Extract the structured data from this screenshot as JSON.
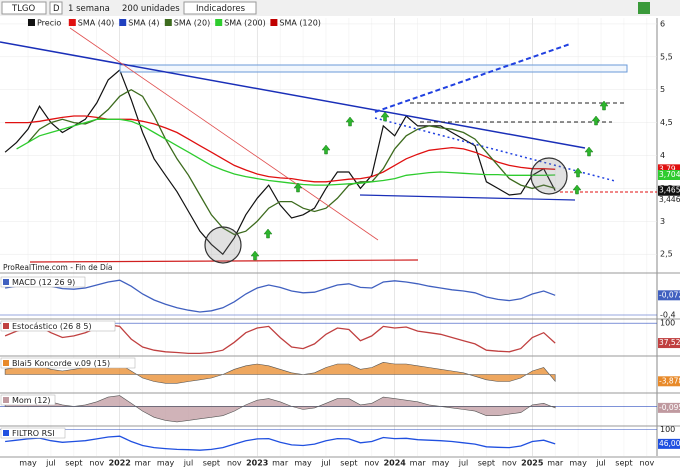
{
  "toolbar": {
    "symbol": "TLGO",
    "mode": "D",
    "period": "1 semana",
    "units": "200 unidades",
    "indicators": "Indicadores"
  },
  "chart_data": [
    {
      "type": "line",
      "source": "ProRealTime.com - Fin de Día",
      "categories": [
        null,
        null,
        "may",
        null,
        "jul",
        null,
        "sept",
        null,
        "nov",
        null,
        "2022",
        null,
        "mar",
        null,
        "may",
        null,
        "jul",
        null,
        "sept",
        null,
        "nov",
        null,
        "2023",
        null,
        "mar",
        null,
        "may",
        null,
        "jul",
        null,
        "sept",
        null,
        "nov",
        null,
        "2024",
        null,
        "mar",
        null,
        "may",
        null,
        "jul",
        null,
        "sept",
        null,
        "nov",
        null,
        "2025",
        null,
        "mar",
        null,
        "may",
        null,
        "jul",
        null,
        "sept",
        null,
        "nov"
      ],
      "ylim": [
        2.23,
        6.09
      ],
      "yticks": [
        {
          "value": 2.5,
          "label": "2,5"
        },
        3,
        {
          "value": 3.5,
          "label": "3,5"
        },
        4,
        {
          "value": 4.5,
          "label": "4,5"
        },
        5,
        {
          "value": 5.5,
          "label": "5,5"
        },
        6
      ],
      "series": [
        {
          "name": "Precio",
          "color": "#111111",
          "values": [
            4.05,
            4.2,
            4.4,
            4.75,
            4.5,
            4.35,
            4.45,
            4.55,
            4.8,
            5.15,
            5.3,
            4.85,
            4.35,
            3.95,
            3.7,
            3.45,
            3.15,
            2.85,
            2.65,
            2.5,
            2.75,
            3.1,
            3.35,
            3.55,
            3.25,
            3.05,
            3.1,
            3.2,
            3.5,
            3.75,
            3.75,
            3.5,
            3.7,
            4.45,
            4.3,
            4.6,
            4.45,
            4.45,
            4.45,
            4.35,
            4.25,
            4.15,
            3.6,
            3.5,
            3.4,
            3.42,
            3.7,
            3.8,
            3.465,
            null,
            null,
            null,
            null,
            null,
            null,
            null,
            null
          ],
          "marker": {
            "value": 3.465,
            "label": "3,465"
          }
        },
        {
          "name": "SMA (40)",
          "color": "#e01010",
          "values": [
            4.5,
            4.5,
            4.5,
            4.52,
            4.55,
            4.58,
            4.6,
            4.6,
            4.58,
            4.55,
            4.55,
            4.55,
            4.52,
            4.48,
            4.42,
            4.35,
            4.25,
            4.15,
            4.05,
            3.95,
            3.85,
            3.78,
            3.72,
            3.68,
            3.66,
            3.65,
            3.62,
            3.6,
            3.6,
            3.62,
            3.64,
            3.65,
            3.68,
            3.75,
            3.85,
            3.95,
            4.02,
            4.08,
            4.1,
            4.12,
            4.1,
            4.05,
            3.98,
            3.9,
            3.85,
            3.82,
            3.8,
            3.8,
            3.79,
            null,
            null,
            null,
            null,
            null,
            null,
            null,
            null
          ],
          "marker": {
            "value": 3.79,
            "label": "3,79"
          }
        },
        {
          "name": "SMA (4)",
          "color": "#2040c0"
        },
        {
          "name": "SMA (20)",
          "color": "#3d6b1e",
          "values": [
            null,
            null,
            4.2,
            4.4,
            4.5,
            4.55,
            4.5,
            4.48,
            4.55,
            4.7,
            4.9,
            5.0,
            4.9,
            4.6,
            4.25,
            3.95,
            3.7,
            3.4,
            3.1,
            2.9,
            2.8,
            2.85,
            3.0,
            3.2,
            3.3,
            3.3,
            3.2,
            3.15,
            3.2,
            3.35,
            3.55,
            3.6,
            3.6,
            3.8,
            4.1,
            4.3,
            4.4,
            4.45,
            4.42,
            4.4,
            4.35,
            4.25,
            4.05,
            3.85,
            3.65,
            3.55,
            3.5,
            3.55,
            3.5,
            null,
            null,
            null,
            null,
            null,
            null,
            null,
            null
          ]
        },
        {
          "name": "SMA (200)",
          "color": "#2ecc2e",
          "values": [
            null,
            4.1,
            4.2,
            4.3,
            4.35,
            4.4,
            4.45,
            4.5,
            4.55,
            4.55,
            4.55,
            4.52,
            4.45,
            4.35,
            4.25,
            4.15,
            4.05,
            3.95,
            3.85,
            3.78,
            3.72,
            3.68,
            3.65,
            3.62,
            3.6,
            3.58,
            3.56,
            3.55,
            3.55,
            3.56,
            3.57,
            3.58,
            3.6,
            3.62,
            3.65,
            3.7,
            3.72,
            3.74,
            3.75,
            3.74,
            3.73,
            3.72,
            3.71,
            3.71,
            3.7,
            3.7,
            3.7,
            3.7,
            3.704,
            null,
            null,
            null,
            null,
            null,
            null,
            null,
            null
          ],
          "marker": {
            "value": 3.704,
            "label": "3,704"
          }
        },
        {
          "name": "SMA (120)",
          "color": "#c00000"
        }
      ],
      "hline": {
        "value": 3.446,
        "label": "3,446",
        "color": "#e01010"
      }
    },
    {
      "type": "line",
      "title": "MACD (12 26 9)",
      "ylim": [
        -0.45,
        0.25
      ],
      "yticks": [
        {
          "value": -0.4,
          "label": "-0,4"
        }
      ],
      "series": [
        {
          "color": "#4060c0",
          "values": [
            0.05,
            0.08,
            0.1,
            0.12,
            0.08,
            0.04,
            0.03,
            0.05,
            0.1,
            0.15,
            0.18,
            0.08,
            -0.05,
            -0.15,
            -0.22,
            -0.28,
            -0.32,
            -0.35,
            -0.33,
            -0.28,
            -0.18,
            -0.05,
            0.05,
            0.1,
            0.06,
            0,
            -0.03,
            -0.02,
            0.04,
            0.1,
            0.12,
            0.06,
            0.05,
            0.15,
            0.17,
            0.15,
            0.12,
            0.08,
            0.05,
            0.02,
            0,
            -0.03,
            -0.1,
            -0.14,
            -0.16,
            -0.13,
            -0.05,
            0,
            -0.072,
            null,
            null,
            null,
            null,
            null,
            null,
            null,
            null
          ],
          "marker": {
            "value": -0.072,
            "label": "-0,072"
          }
        }
      ]
    },
    {
      "type": "line",
      "title": "Estocástico (26 8 5)",
      "ylim": [
        0,
        110
      ],
      "yticks": [
        100
      ],
      "series": [
        {
          "color": "#c04040",
          "values": [
            60,
            75,
            85,
            90,
            70,
            55,
            60,
            70,
            85,
            95,
            90,
            50,
            25,
            15,
            10,
            8,
            5,
            5,
            8,
            15,
            40,
            70,
            85,
            90,
            55,
            25,
            20,
            35,
            65,
            85,
            80,
            45,
            60,
            90,
            85,
            88,
            75,
            70,
            65,
            55,
            45,
            35,
            15,
            12,
            10,
            20,
            55,
            70,
            37.52,
            null,
            null,
            null,
            null,
            null,
            null,
            null,
            null
          ],
          "marker": {
            "value": 37.52,
            "label": "37,52"
          }
        }
      ]
    },
    {
      "type": "area",
      "title": "Blai5 Koncorde v.09 (15)",
      "ylim": [
        -10,
        10
      ],
      "yticks": [],
      "series": [
        {
          "color": "#e88a2a",
          "values": [
            3,
            4,
            5,
            5,
            3,
            2,
            3,
            4,
            5,
            6,
            6,
            2,
            -2,
            -4,
            -5,
            -5,
            -4,
            -3,
            -2,
            0,
            3,
            5,
            6,
            5,
            3,
            1,
            0,
            1,
            4,
            6,
            6,
            3,
            4,
            7,
            6,
            6,
            5,
            4,
            3,
            2,
            1,
            -1,
            -3,
            -4,
            -4,
            -2,
            2,
            4,
            -3.878,
            null,
            null,
            null,
            null,
            null,
            null,
            null,
            null
          ],
          "marker": {
            "value": -3.878,
            "label": "-3,878"
          }
        }
      ]
    },
    {
      "type": "area",
      "title": "Mom (12)",
      "ylim": [
        -1.2,
        0.8
      ],
      "yticks": [
        0
      ],
      "series": [
        {
          "color": "#c09aa0",
          "values": [
            0.1,
            0.2,
            0.4,
            0.5,
            0.3,
            0.1,
            0,
            0.1,
            0.3,
            0.6,
            0.7,
            0.2,
            -0.3,
            -0.7,
            -0.9,
            -1.0,
            -0.9,
            -0.8,
            -0.7,
            -0.6,
            -0.3,
            0.1,
            0.4,
            0.5,
            0.3,
            0,
            -0.2,
            -0.1,
            0.2,
            0.5,
            0.5,
            0.1,
            0.2,
            0.6,
            0.5,
            0.4,
            0.3,
            0.1,
            0,
            -0.1,
            -0.2,
            -0.3,
            -0.6,
            -0.6,
            -0.5,
            -0.4,
            0.1,
            0.2,
            -0.095,
            null,
            null,
            null,
            null,
            null,
            null,
            null,
            null
          ],
          "marker": {
            "value": -0.095,
            "label": "-0,095"
          }
        }
      ]
    },
    {
      "type": "line",
      "title": "FILTRO RSI",
      "ylim": [
        0,
        110
      ],
      "yticks": [
        100
      ],
      "series": [
        {
          "color": "#2050e0",
          "values": [
            55,
            60,
            65,
            68,
            58,
            52,
            55,
            58,
            65,
            72,
            75,
            55,
            40,
            32,
            28,
            25,
            24,
            22,
            25,
            32,
            45,
            58,
            65,
            66,
            52,
            42,
            40,
            45,
            58,
            66,
            65,
            50,
            55,
            70,
            66,
            67,
            62,
            60,
            58,
            55,
            50,
            45,
            35,
            33,
            32,
            38,
            55,
            60,
            46,
            null,
            null,
            null,
            null,
            null,
            null,
            null,
            null
          ],
          "marker": {
            "value": 46,
            "label": "46,00"
          }
        }
      ]
    }
  ]
}
